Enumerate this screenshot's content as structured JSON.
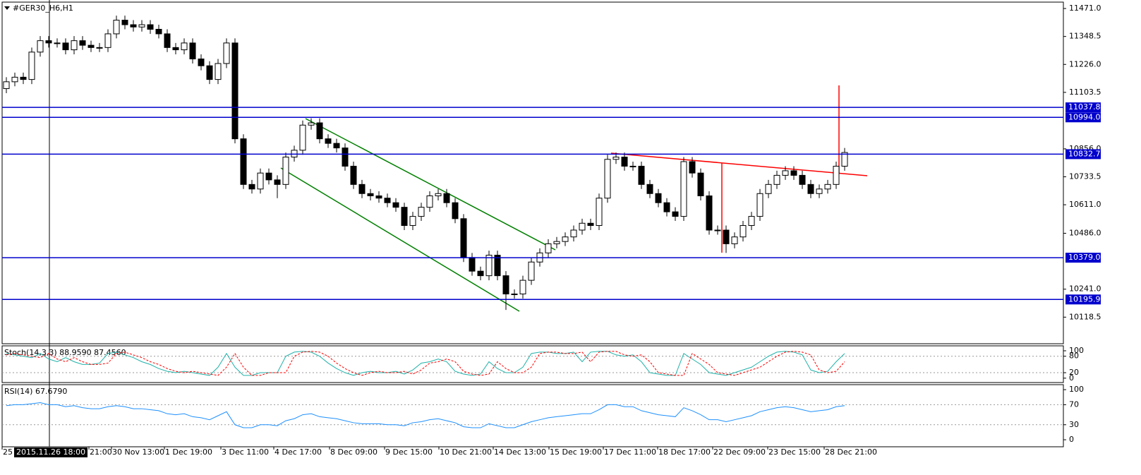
{
  "chart_data": [
    {
      "type": "candlestick",
      "title": "#GER30_H6,H1",
      "open": [
        11120,
        11150,
        11170,
        11160,
        11280,
        11330,
        11320,
        11320,
        11290,
        11330,
        11310,
        11300,
        11300,
        11360,
        11420,
        11400,
        11390,
        11400,
        11380,
        11360,
        11300,
        11290,
        11320,
        11250,
        11220,
        11160,
        11230,
        11320,
        10900,
        10700,
        10680,
        10750,
        10720,
        10700,
        10820,
        10850,
        10960,
        10970,
        10900,
        10880,
        10860,
        10780,
        10700,
        10660,
        10650,
        10640,
        10620,
        10600,
        10520,
        10560,
        10600,
        10650,
        10660,
        10620,
        10550,
        10380,
        10320,
        10300,
        10390,
        10300,
        10220,
        10220,
        10280,
        10360,
        10400,
        10440,
        10450,
        10470,
        10500,
        10530,
        10520,
        10640,
        10810,
        10820,
        10780,
        10780,
        10700,
        10660,
        10620,
        10580,
        10560,
        10800,
        10750,
        10650,
        10500,
        10500,
        10440,
        10470,
        10520,
        10560,
        10660,
        10700,
        10740,
        10760,
        10740,
        10700,
        10660,
        10680,
        10700,
        10780
      ],
      "high": [
        11170,
        11190,
        11190,
        11300,
        11350,
        11350,
        11340,
        11340,
        11350,
        11350,
        11330,
        11320,
        11380,
        11440,
        11440,
        11420,
        11420,
        11420,
        11400,
        11380,
        11320,
        11340,
        11340,
        11270,
        11240,
        11250,
        11340,
        11340,
        10920,
        10720,
        10770,
        10770,
        10740,
        10840,
        10870,
        10980,
        10990,
        10990,
        10920,
        10900,
        10880,
        10800,
        10720,
        10680,
        10670,
        10660,
        10640,
        10620,
        10580,
        10620,
        10670,
        10680,
        10680,
        10640,
        10570,
        10400,
        10340,
        10410,
        10410,
        10320,
        10240,
        10300,
        10380,
        10420,
        10460,
        10470,
        10490,
        10520,
        10550,
        10550,
        10660,
        10830,
        10840,
        10840,
        10800,
        10800,
        10720,
        10680,
        10640,
        10600,
        10820,
        10820,
        10770,
        10670,
        10520,
        10520,
        10490,
        10540,
        10580,
        10680,
        10720,
        10760,
        10780,
        10780,
        10760,
        10720,
        10700,
        10720,
        10800,
        10860
      ],
      "low": [
        11100,
        11130,
        11140,
        11140,
        11260,
        11300,
        11300,
        11270,
        11270,
        11290,
        11280,
        11280,
        11280,
        11340,
        11380,
        11370,
        11370,
        11360,
        11340,
        11280,
        11270,
        11270,
        11230,
        11200,
        11140,
        11140,
        11210,
        10880,
        10680,
        10660,
        10660,
        10700,
        10640,
        10680,
        10800,
        10830,
        10940,
        10880,
        10860,
        10840,
        10760,
        10680,
        10640,
        10630,
        10620,
        10600,
        10580,
        10500,
        10500,
        10540,
        10580,
        10630,
        10600,
        10530,
        10360,
        10300,
        10280,
        10280,
        10280,
        10150,
        10200,
        10200,
        10260,
        10340,
        10380,
        10420,
        10430,
        10450,
        10480,
        10500,
        10500,
        10620,
        10790,
        10760,
        10760,
        10680,
        10640,
        10600,
        10560,
        10540,
        10540,
        10730,
        10630,
        10480,
        10480,
        10400,
        10420,
        10450,
        10500,
        10540,
        10640,
        10680,
        10720,
        10720,
        10680,
        10640,
        10640,
        10660,
        10680,
        10760
      ],
      "close": [
        11150,
        11170,
        11160,
        11280,
        11330,
        11320,
        11320,
        11290,
        11330,
        11310,
        11300,
        11300,
        11360,
        11420,
        11400,
        11390,
        11400,
        11380,
        11360,
        11300,
        11290,
        11320,
        11250,
        11220,
        11160,
        11230,
        11320,
        10900,
        10700,
        10680,
        10750,
        10720,
        10700,
        10820,
        10850,
        10960,
        10970,
        10900,
        10880,
        10860,
        10780,
        10700,
        10660,
        10650,
        10640,
        10620,
        10600,
        10520,
        10560,
        10600,
        10650,
        10660,
        10620,
        10550,
        10380,
        10320,
        10300,
        10390,
        10300,
        10220,
        10220,
        10280,
        10360,
        10400,
        10440,
        10450,
        10470,
        10500,
        10530,
        10520,
        10640,
        10810,
        10820,
        10780,
        10780,
        10700,
        10660,
        10620,
        10580,
        10560,
        10800,
        10750,
        10650,
        10500,
        10500,
        10440,
        10470,
        10520,
        10560,
        10660,
        10700,
        10740,
        10760,
        10740,
        10700,
        10660,
        10680,
        10700,
        10780,
        10840
      ],
      "color_up": "#ffffff",
      "color_down": "#000000",
      "ylim": [
        10002,
        11499
      ],
      "yticks": [
        {
          "value": 11471,
          "label": "11471.0"
        },
        11348.5,
        {
          "value": 11226,
          "label": "11226.0"
        },
        11103.5,
        {
          "value": 10856,
          "label": "10856.0"
        },
        10733.5,
        {
          "value": 10611,
          "label": "10611.0"
        },
        {
          "value": 10486,
          "label": "10486.0"
        },
        {
          "value": 10241,
          "label": "10241.0"
        },
        10118.5
      ],
      "levels": [
        11037.8,
        {
          "value": 10994,
          "label": "10994.0"
        },
        10832.7,
        {
          "value": 10379,
          "label": "10379.0"
        },
        10195.9
      ],
      "level_color": "#0000cd"
    },
    {
      "type": "line",
      "title": "Stoch(14,3,3) 88.9590 87.4560",
      "series": [
        {
          "color": "#20b2aa",
          "values": [
            90,
            85,
            80,
            75,
            90,
            70,
            60,
            75,
            60,
            50,
            50,
            55,
            90,
            95,
            85,
            75,
            60,
            50,
            35,
            25,
            20,
            25,
            20,
            15,
            10,
            40,
            90,
            40,
            10,
            10,
            20,
            20,
            20,
            80,
            95,
            98,
            95,
            80,
            55,
            35,
            20,
            10,
            20,
            25,
            20,
            20,
            25,
            15,
            30,
            55,
            60,
            70,
            60,
            25,
            15,
            10,
            15,
            60,
            35,
            20,
            20,
            40,
            90,
            95,
            95,
            90,
            90,
            95,
            60,
            95,
            98,
            98,
            85,
            80,
            85,
            60,
            20,
            15,
            10,
            10,
            90,
            70,
            50,
            20,
            15,
            10,
            20,
            30,
            40,
            60,
            80,
            95,
            98,
            95,
            85,
            30,
            20,
            25,
            60,
            90
          ]
        },
        {
          "color": "#ff0000",
          "dash": true,
          "values": [
            85,
            90,
            85,
            80,
            75,
            90,
            70,
            60,
            75,
            60,
            50,
            50,
            55,
            90,
            95,
            85,
            75,
            60,
            50,
            35,
            25,
            20,
            25,
            20,
            15,
            10,
            40,
            90,
            40,
            10,
            10,
            20,
            20,
            20,
            80,
            95,
            98,
            95,
            80,
            55,
            35,
            20,
            10,
            20,
            25,
            20,
            20,
            25,
            15,
            30,
            55,
            60,
            70,
            60,
            25,
            15,
            10,
            15,
            60,
            35,
            20,
            20,
            40,
            90,
            95,
            95,
            90,
            90,
            95,
            60,
            95,
            98,
            98,
            85,
            80,
            85,
            60,
            20,
            15,
            10,
            10,
            90,
            70,
            50,
            20,
            15,
            10,
            20,
            30,
            40,
            60,
            80,
            95,
            98,
            95,
            85,
            30,
            20,
            25,
            60
          ]
        }
      ],
      "ylim": [
        -16,
        118
      ],
      "yticks": [
        100,
        80,
        20,
        0
      ]
    },
    {
      "type": "line",
      "title": "RSI(14) 67.6790",
      "series": [
        {
          "color": "#1e90ff",
          "values": [
            68,
            70,
            70,
            72,
            74,
            70,
            70,
            66,
            68,
            64,
            62,
            62,
            66,
            68,
            66,
            62,
            62,
            60,
            58,
            52,
            50,
            52,
            46,
            44,
            40,
            48,
            56,
            30,
            24,
            24,
            30,
            30,
            28,
            38,
            42,
            50,
            52,
            46,
            44,
            42,
            38,
            34,
            32,
            32,
            32,
            30,
            30,
            28,
            34,
            36,
            40,
            42,
            38,
            34,
            26,
            24,
            24,
            32,
            28,
            24,
            24,
            30,
            36,
            40,
            44,
            46,
            48,
            50,
            52,
            52,
            60,
            70,
            70,
            66,
            66,
            58,
            54,
            50,
            48,
            46,
            64,
            58,
            50,
            40,
            40,
            36,
            40,
            44,
            48,
            56,
            60,
            64,
            66,
            64,
            60,
            56,
            58,
            60,
            66,
            68
          ]
        }
      ],
      "ylim": [
        -14,
        110
      ],
      "yticks": [
        100,
        70,
        30,
        0
      ]
    }
  ],
  "time_axis": {
    "labels": [
      "25",
      "21:00",
      "30 Nov 13:00",
      "1 Dec 19:00",
      "3 Dec 11:00",
      "4 Dec 17:00",
      "8 Dec 09:00",
      "9 Dec 15:00",
      "10 Dec 21:00",
      "14 Dec 13:00",
      "15 Dec 19:00",
      "17 Dec 11:00",
      "18 Dec 17:00",
      "22 Dec 09:00",
      "23 Dec 15:00",
      "28 Dec 21:00"
    ],
    "crosshair_label": "2015.11.26 18:00"
  }
}
